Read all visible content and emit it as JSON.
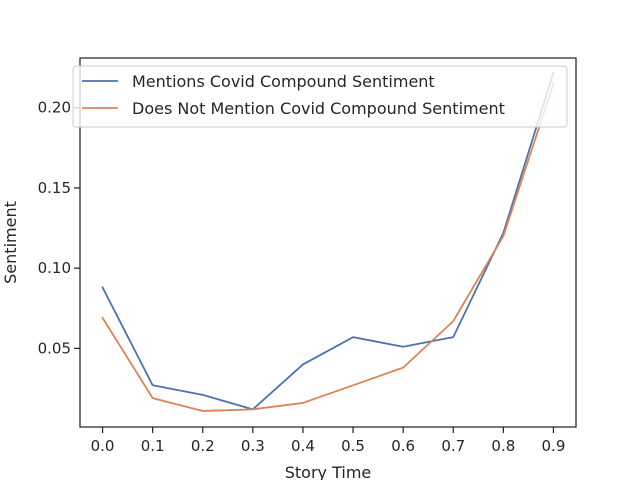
{
  "chart_data": {
    "type": "line",
    "title": "",
    "xlabel": "Story Time",
    "ylabel": "Sentiment",
    "x": [
      0.0,
      0.1,
      0.2,
      0.3,
      0.4,
      0.5,
      0.6,
      0.7,
      0.8,
      0.9
    ],
    "x_tick_labels": [
      "0.0",
      "0.1",
      "0.2",
      "0.3",
      "0.4",
      "0.5",
      "0.6",
      "0.7",
      "0.8",
      "0.9"
    ],
    "y_ticks": [
      0.05,
      0.1,
      0.15,
      0.2
    ],
    "y_tick_labels": [
      "0.05",
      "0.10",
      "0.15",
      "0.20"
    ],
    "xlim": [
      -0.045,
      0.945
    ],
    "ylim": [
      0.001,
      0.231
    ],
    "grid": false,
    "legend_position": "top-right",
    "series": [
      {
        "name": "Mentions Covid Compound Sentiment",
        "color": "#4c72b0",
        "values": [
          0.088,
          0.027,
          0.021,
          0.012,
          0.04,
          0.057,
          0.051,
          0.057,
          0.122,
          0.222
        ]
      },
      {
        "name": "Does Not Mention Covid Compound Sentiment",
        "color": "#dd8452",
        "values": [
          0.069,
          0.019,
          0.011,
          0.012,
          0.016,
          0.027,
          0.038,
          0.067,
          0.12,
          0.215
        ]
      }
    ]
  }
}
